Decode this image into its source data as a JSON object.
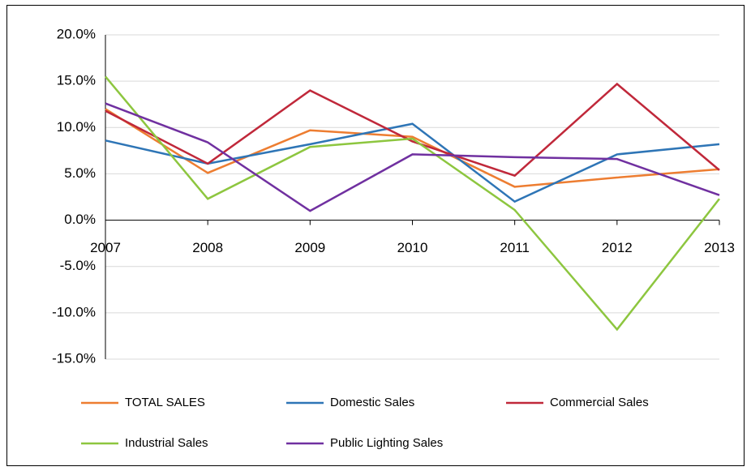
{
  "chart_data": {
    "type": "line",
    "categories": [
      "2007",
      "2008",
      "2009",
      "2010",
      "2011",
      "2012",
      "2013"
    ],
    "series": [
      {
        "name": "TOTAL SALES",
        "color": "#ed7d31",
        "values": [
          12.0,
          5.1,
          9.7,
          9.0,
          3.6,
          4.6,
          5.5
        ]
      },
      {
        "name": "Domestic Sales",
        "color": "#2e75b6",
        "values": [
          8.6,
          6.1,
          8.2,
          10.4,
          2.0,
          7.1,
          8.2
        ]
      },
      {
        "name": "Commercial Sales",
        "color": "#c0283a",
        "values": [
          11.8,
          6.1,
          14.0,
          8.5,
          4.8,
          14.7,
          5.4
        ]
      },
      {
        "name": "Industrial Sales",
        "color": "#8dc63f",
        "values": [
          15.5,
          2.3,
          7.9,
          8.8,
          1.1,
          -11.8,
          2.3
        ]
      },
      {
        "name": "Public Lighting Sales",
        "color": "#7030a0",
        "values": [
          12.6,
          8.4,
          1.0,
          7.1,
          6.8,
          6.6,
          2.7
        ]
      }
    ],
    "ylim": [
      -15,
      20
    ],
    "yticks": [
      {
        "value": -15,
        "label": "-15.0%"
      },
      {
        "value": -10,
        "label": "-10.0%"
      },
      {
        "value": -5,
        "label": "-5.0%"
      },
      {
        "value": 0,
        "label": "0.0%"
      },
      {
        "value": 5,
        "label": "5.0%"
      },
      {
        "value": 10,
        "label": "10.0%"
      },
      {
        "value": 15,
        "label": "15.0%"
      },
      {
        "value": 20,
        "label": "20.0%"
      }
    ],
    "grid": true,
    "legend": "bottom"
  }
}
